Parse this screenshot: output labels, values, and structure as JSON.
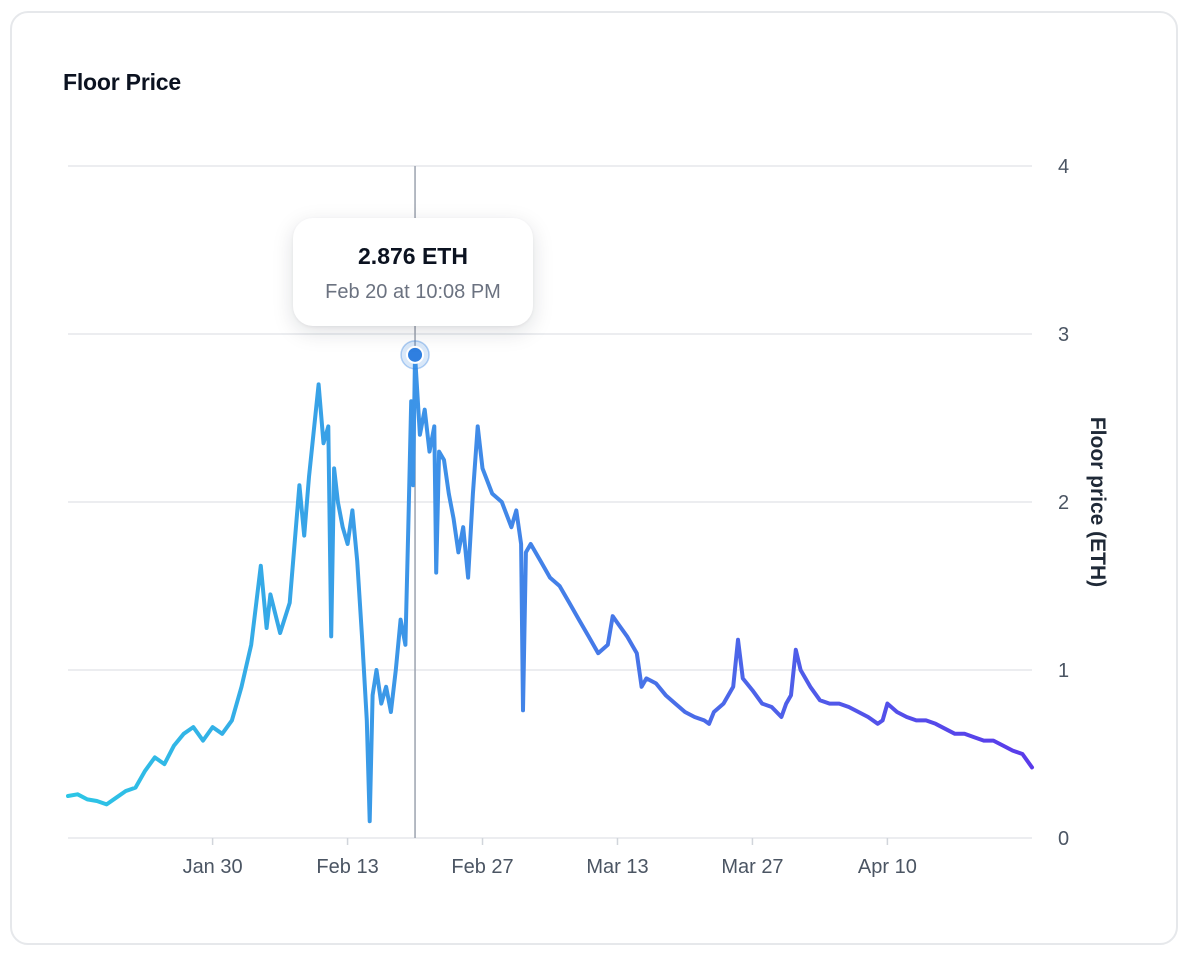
{
  "card": {
    "title": "Floor Price"
  },
  "tooltip": {
    "value": "2.876 ETH",
    "date": "Feb 20 at 10:08 PM"
  },
  "colors": {
    "line_start": "#2cc6e6",
    "line_end": "#5a3bea",
    "marker": "#2f7fe0",
    "gridline": "#e5e7eb",
    "crosshair": "#9ca3af"
  },
  "chart_data": {
    "type": "line",
    "title": "Floor Price",
    "xlabel": "",
    "ylabel": "Floor price (ETH)",
    "y_axis_position": "right",
    "ylim": [
      0,
      4
    ],
    "yticks": [
      0,
      1,
      2,
      3,
      4
    ],
    "x_start_day": 0,
    "x_end_day": 100,
    "x_ticks": [
      {
        "day": 15,
        "label": "Jan 30"
      },
      {
        "day": 29,
        "label": "Feb 13"
      },
      {
        "day": 43,
        "label": "Feb 27"
      },
      {
        "day": 57,
        "label": "Mar 13"
      },
      {
        "day": 71,
        "label": "Mar 27"
      },
      {
        "day": 85,
        "label": "Apr 10"
      }
    ],
    "highlight": {
      "day": 36,
      "value": 2.876
    },
    "series": [
      {
        "name": "Floor price",
        "points": [
          [
            0,
            0.25
          ],
          [
            1,
            0.26
          ],
          [
            2,
            0.23
          ],
          [
            3,
            0.22
          ],
          [
            4,
            0.2
          ],
          [
            5,
            0.24
          ],
          [
            6,
            0.28
          ],
          [
            7,
            0.3
          ],
          [
            8,
            0.4
          ],
          [
            9,
            0.48
          ],
          [
            10,
            0.44
          ],
          [
            11,
            0.55
          ],
          [
            12,
            0.62
          ],
          [
            13,
            0.66
          ],
          [
            14,
            0.58
          ],
          [
            15,
            0.66
          ],
          [
            16,
            0.62
          ],
          [
            17,
            0.7
          ],
          [
            18,
            0.9
          ],
          [
            19,
            1.15
          ],
          [
            20,
            1.62
          ],
          [
            20.6,
            1.25
          ],
          [
            21,
            1.45
          ],
          [
            22,
            1.22
          ],
          [
            23,
            1.4
          ],
          [
            24,
            2.1
          ],
          [
            24.5,
            1.8
          ],
          [
            25,
            2.15
          ],
          [
            26,
            2.7
          ],
          [
            26.5,
            2.35
          ],
          [
            27,
            2.45
          ],
          [
            27.3,
            1.2
          ],
          [
            27.6,
            2.2
          ],
          [
            28,
            2.0
          ],
          [
            28.5,
            1.85
          ],
          [
            29,
            1.75
          ],
          [
            29.5,
            1.95
          ],
          [
            30,
            1.65
          ],
          [
            30.5,
            1.2
          ],
          [
            31,
            0.7
          ],
          [
            31.3,
            0.1
          ],
          [
            31.6,
            0.85
          ],
          [
            32,
            1.0
          ],
          [
            32.5,
            0.8
          ],
          [
            33,
            0.9
          ],
          [
            33.5,
            0.75
          ],
          [
            34,
            1.0
          ],
          [
            34.5,
            1.3
          ],
          [
            35,
            1.15
          ],
          [
            35.3,
            1.85
          ],
          [
            35.6,
            2.6
          ],
          [
            35.8,
            2.1
          ],
          [
            36,
            2.876
          ],
          [
            36.5,
            2.4
          ],
          [
            37,
            2.55
          ],
          [
            37.5,
            2.3
          ],
          [
            38,
            2.45
          ],
          [
            38.2,
            1.58
          ],
          [
            38.5,
            2.3
          ],
          [
            39,
            2.25
          ],
          [
            39.5,
            2.05
          ],
          [
            40,
            1.9
          ],
          [
            40.5,
            1.7
          ],
          [
            41,
            1.85
          ],
          [
            41.5,
            1.55
          ],
          [
            42,
            2.05
          ],
          [
            42.5,
            2.45
          ],
          [
            43,
            2.2
          ],
          [
            44,
            2.05
          ],
          [
            45,
            2.0
          ],
          [
            46,
            1.85
          ],
          [
            46.5,
            1.95
          ],
          [
            47,
            1.75
          ],
          [
            47.2,
            0.76
          ],
          [
            47.5,
            1.7
          ],
          [
            48,
            1.75
          ],
          [
            49,
            1.65
          ],
          [
            50,
            1.55
          ],
          [
            51,
            1.5
          ],
          [
            52,
            1.4
          ],
          [
            53,
            1.3
          ],
          [
            54,
            1.2
          ],
          [
            55,
            1.1
          ],
          [
            56,
            1.15
          ],
          [
            56.5,
            1.32
          ],
          [
            57,
            1.28
          ],
          [
            58,
            1.2
          ],
          [
            59,
            1.1
          ],
          [
            59.5,
            0.9
          ],
          [
            60,
            0.95
          ],
          [
            61,
            0.92
          ],
          [
            62,
            0.85
          ],
          [
            63,
            0.8
          ],
          [
            64,
            0.75
          ],
          [
            65,
            0.72
          ],
          [
            66,
            0.7
          ],
          [
            66.5,
            0.68
          ],
          [
            67,
            0.75
          ],
          [
            68,
            0.8
          ],
          [
            69,
            0.9
          ],
          [
            69.5,
            1.18
          ],
          [
            70,
            0.95
          ],
          [
            71,
            0.88
          ],
          [
            72,
            0.8
          ],
          [
            73,
            0.78
          ],
          [
            74,
            0.72
          ],
          [
            74.5,
            0.8
          ],
          [
            75,
            0.85
          ],
          [
            75.5,
            1.12
          ],
          [
            76,
            1.0
          ],
          [
            77,
            0.9
          ],
          [
            78,
            0.82
          ],
          [
            79,
            0.8
          ],
          [
            80,
            0.8
          ],
          [
            81,
            0.78
          ],
          [
            82,
            0.75
          ],
          [
            83,
            0.72
          ],
          [
            84,
            0.68
          ],
          [
            84.5,
            0.7
          ],
          [
            85,
            0.8
          ],
          [
            86,
            0.75
          ],
          [
            87,
            0.72
          ],
          [
            88,
            0.7
          ],
          [
            89,
            0.7
          ],
          [
            90,
            0.68
          ],
          [
            91,
            0.65
          ],
          [
            92,
            0.62
          ],
          [
            93,
            0.62
          ],
          [
            94,
            0.6
          ],
          [
            95,
            0.58
          ],
          [
            96,
            0.58
          ],
          [
            97,
            0.55
          ],
          [
            98,
            0.52
          ],
          [
            99,
            0.5
          ],
          [
            100,
            0.42
          ]
        ]
      }
    ]
  }
}
